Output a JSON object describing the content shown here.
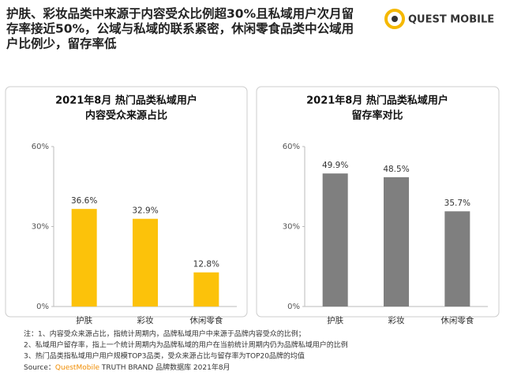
{
  "header": {
    "title": [
      "护肤、彩妆品类中来源于内容受众比例超30%且私域用户次月留",
      "存率接近50%，公域与私域的联系紧密，休闲零食品类中公域用",
      "户比例少，留存率低"
    ],
    "logo": "QUEST MOBILE"
  },
  "chart_data": [
    {
      "type": "bar",
      "title": [
        "2021年8月 热门品类私域用户",
        "内容受众来源占比"
      ],
      "categories": [
        "护肤",
        "彩妆",
        "休闲零食"
      ],
      "values": [
        36.6,
        32.9,
        12.8
      ],
      "value_labels": [
        "36.6%",
        "32.9%",
        "12.8%"
      ],
      "color": "#fcc20a",
      "ylim": [
        0,
        60
      ],
      "yticks": [
        {
          "value": 0,
          "label": "0%"
        },
        {
          "value": 30,
          "label": "30%"
        },
        {
          "value": 60,
          "label": "60%"
        }
      ]
    },
    {
      "type": "bar",
      "title": [
        "2021年8月 热门品类私域用户",
        "留存率对比"
      ],
      "categories": [
        "护肤",
        "彩妆",
        "休闲零食"
      ],
      "values": [
        49.9,
        48.5,
        35.7
      ],
      "value_labels": [
        "49.9%",
        "48.5%",
        "35.7%"
      ],
      "color": "#7f7f7f",
      "ylim": [
        0,
        60
      ],
      "yticks": [
        {
          "value": 0,
          "label": "0%"
        },
        {
          "value": 30,
          "label": "30%"
        },
        {
          "value": 60,
          "label": "60%"
        }
      ]
    }
  ],
  "notes": {
    "lines": [
      "注：1、内容受众来源占比，指统计周期内，品牌私域用户中来源于品牌内容受众的比例；",
      "2、私域用户留存率，指上一个统计周期内为品牌私域的用户在当前统计周期内仍为品牌私域用户的比例",
      "3、热门品类指私域用户用户规模TOP3品类，受众来源占比与留存率为TOP20品牌的均值"
    ],
    "source": {
      "prefix": "Source：",
      "brand": "QuestMobile",
      "rest": " TRUTH BRAND 品牌数据库 2021年8月"
    }
  }
}
